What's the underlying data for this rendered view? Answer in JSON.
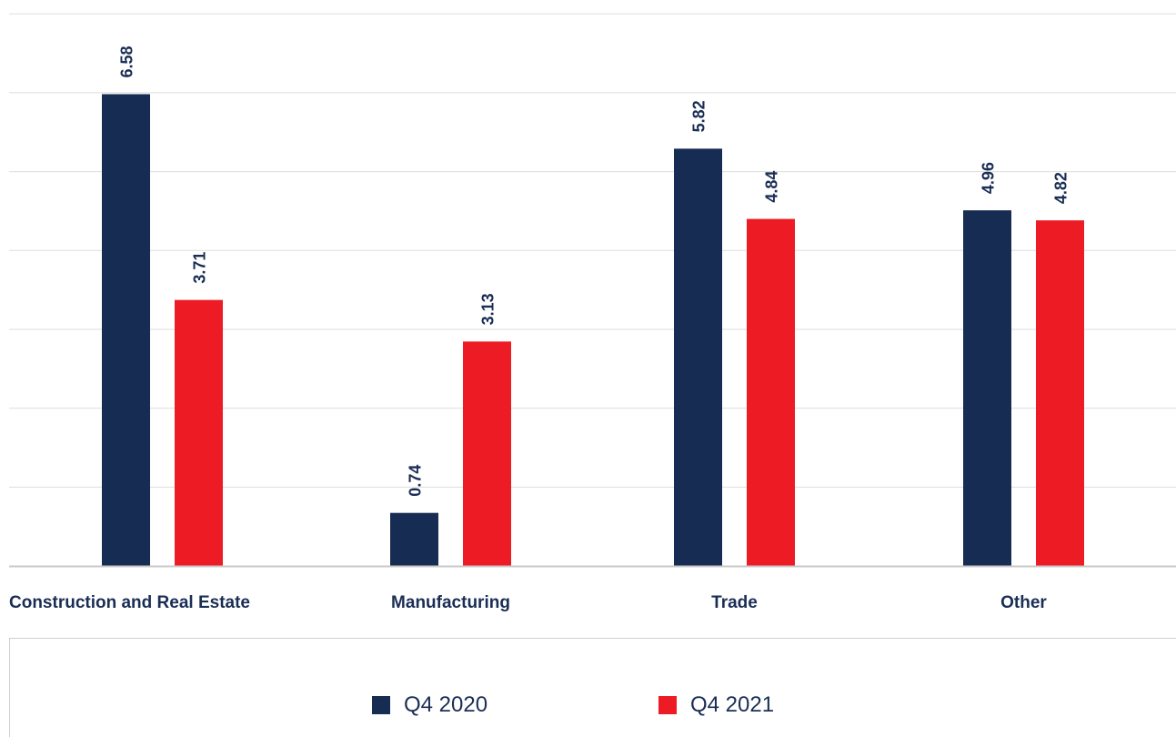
{
  "chart_data": {
    "type": "bar",
    "title": "",
    "xlabel": "",
    "ylabel": "",
    "categories": [
      "Construction and Real Estate",
      "Manufacturing",
      "Trade",
      "Other"
    ],
    "series": [
      {
        "name": "Q4 2020",
        "color": "#172c52",
        "values": [
          6.58,
          0.74,
          5.82,
          4.96
        ]
      },
      {
        "name": "Q4 2021",
        "color": "#ed1c24",
        "values": [
          3.71,
          3.13,
          4.84,
          4.82
        ]
      }
    ],
    "ylim": [
      0,
      7.8
    ],
    "yticks": [
      0,
      1.1,
      2.2,
      3.3,
      4.4,
      5.5,
      6.6,
      7.7
    ],
    "grid": true,
    "legend": "bottom"
  }
}
